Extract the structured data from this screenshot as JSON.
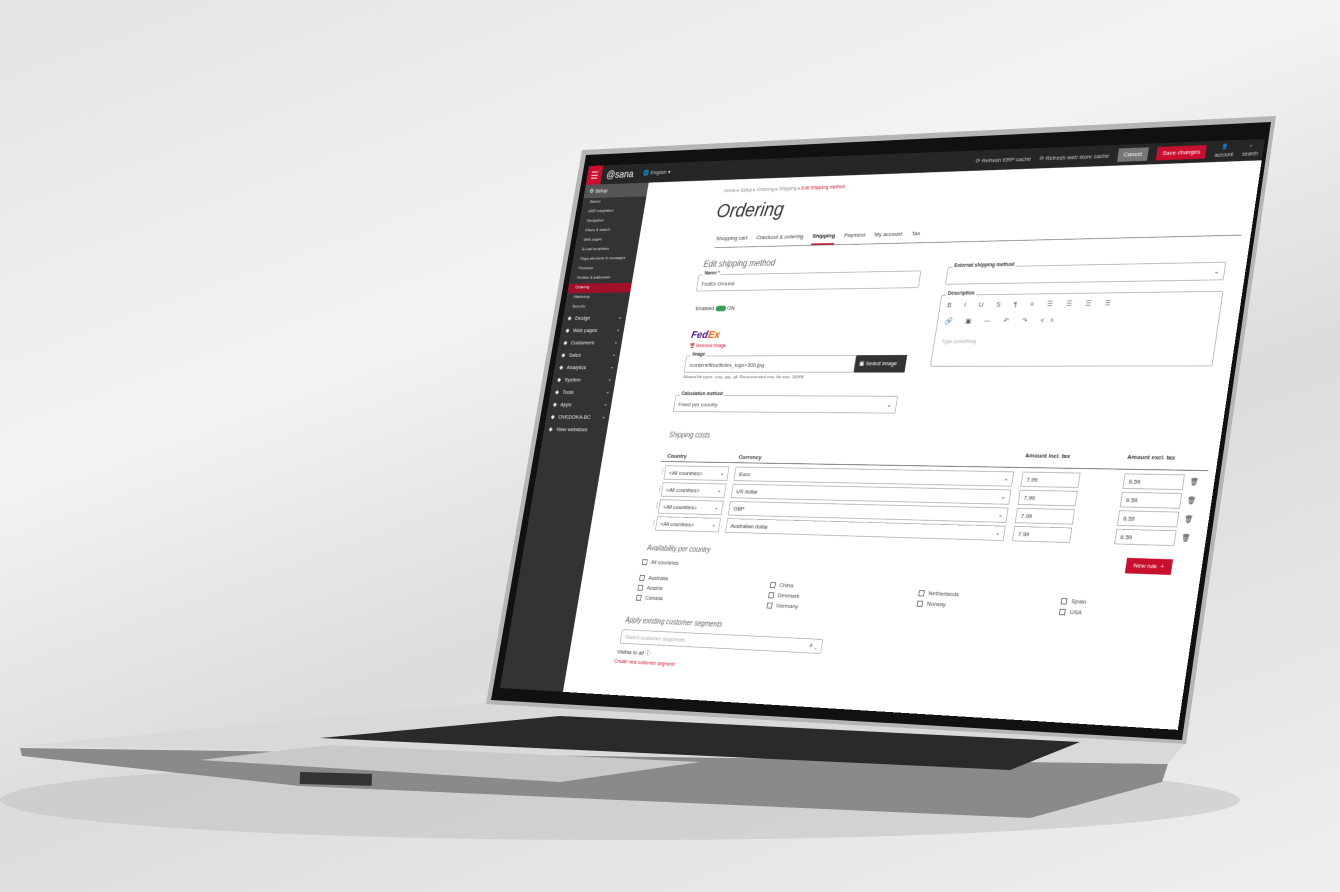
{
  "topbar": {
    "brand": "sana",
    "language": "English",
    "refresh_erp": "Refresh ERP cache",
    "refresh_web": "Refresh web store cache",
    "cancel": "Cancel",
    "save": "Save changes",
    "account": "account",
    "search": "search",
    "accent": "#c8102e"
  },
  "sidebar": {
    "setup": "Setup",
    "setup_items": [
      "Basics",
      "ERP integration",
      "Navigation",
      "Filters & search",
      "Web pages",
      "E-mail templates",
      "Page elements & messages",
      "Products",
      "Profiles & addresses",
      "Ordering",
      "Marketing",
      "Security"
    ],
    "active": "Ordering",
    "main_items": [
      {
        "label": "Design",
        "icon": "brush-icon"
      },
      {
        "label": "Web pages",
        "icon": "pages-icon"
      },
      {
        "label": "Customers",
        "icon": "users-icon"
      },
      {
        "label": "Sales",
        "icon": "cart-icon"
      },
      {
        "label": "Analytics",
        "icon": "chart-icon"
      },
      {
        "label": "System",
        "icon": "system-icon"
      },
      {
        "label": "Tools",
        "icon": "tools-icon"
      },
      {
        "label": "Apps",
        "icon": "apps-icon"
      },
      {
        "label": "OVEDOKA-BC",
        "icon": "store-icon"
      },
      {
        "label": "View webstore",
        "icon": "external-icon"
      }
    ]
  },
  "breadcrumb": [
    "Home",
    "Setup",
    "Ordering",
    "Shipping",
    "Edit Shipping method"
  ],
  "page_title": "Ordering",
  "tabs": [
    "Shopping cart",
    "Checkout & ordering",
    "Shipping",
    "Payment",
    "My account",
    "Tax"
  ],
  "active_tab": "Shipping",
  "form": {
    "section": "Edit shipping method",
    "name_label": "Name *",
    "name_value": "FedEx Ground",
    "external_label": "External shipping method",
    "enabled_label": "Enabled",
    "enabled_state": "ON",
    "description_label": "Description",
    "description_placeholder": "Type something",
    "logo_text": "FedEx",
    "remove_image": "Remove image",
    "image_label": "Image",
    "image_value": "/content/files/fedex_logo=300.jpg",
    "select_image": "Select image",
    "image_help": "Allowed file types: .png, .jpg, .gif. Recommended max. file size: 100KB.",
    "calc_label": "Calculation method",
    "calc_value": "Fixed per country"
  },
  "shipping_costs": {
    "title": "Shipping costs",
    "headers": [
      "Country",
      "Currency",
      "Amount incl. tax",
      "Amount excl. tax"
    ],
    "rows": [
      {
        "country": "<All countries>",
        "currency": "Euro",
        "incl": "7.99",
        "excl": "6.59"
      },
      {
        "country": "<All countries>",
        "currency": "US dollar",
        "incl": "7.99",
        "excl": "6.59"
      },
      {
        "country": "<All countries>",
        "currency": "GBP",
        "incl": "7.99",
        "excl": "6.59"
      },
      {
        "country": "<All countries>",
        "currency": "Australian dollar",
        "incl": "7.99",
        "excl": "6.59"
      }
    ],
    "new_rule": "New rule"
  },
  "availability": {
    "title": "Availability per country",
    "all": "All countries",
    "columns": [
      [
        "Australia",
        "Austria",
        "Canada"
      ],
      [
        "China",
        "Denmark",
        "Germany"
      ],
      [
        "Netherlands",
        "Norway"
      ],
      [
        "Spain",
        "USA"
      ]
    ]
  },
  "segments": {
    "title": "Apply existing customer segments",
    "placeholder": "Select customer segments",
    "visible": "Visible to all",
    "create": "Create new customer segment"
  }
}
